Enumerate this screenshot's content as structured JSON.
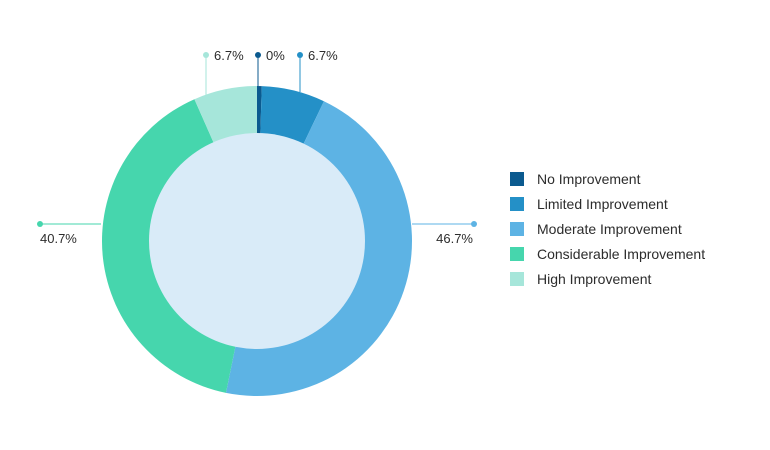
{
  "chart_data": {
    "type": "pie",
    "variant": "donut",
    "categories": [
      "No Improvement",
      "Limited Improvement",
      "Moderate Improvement",
      "Considerable Improvement",
      "High Improvement"
    ],
    "values": [
      0.5,
      6.7,
      46.7,
      40.7,
      6.7
    ],
    "value_labels": [
      "0%",
      "6.7%",
      "46.7%",
      "40.7%",
      "6.7%"
    ],
    "colors": [
      "#0b5a8f",
      "#2490c7",
      "#5db3e4",
      "#46d6ad",
      "#a6e6da"
    ],
    "inner_fill": "#d9ebf8",
    "legend_position": "right"
  }
}
